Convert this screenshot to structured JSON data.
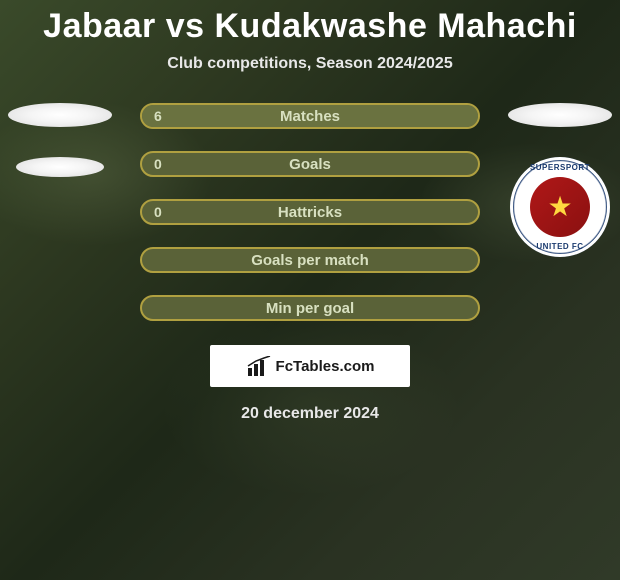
{
  "header": {
    "title": "Jabaar vs Kudakwashe Mahachi",
    "subtitle": "Club competitions, Season 2024/2025"
  },
  "colors": {
    "bar_border": "#b0a040",
    "bar_bg": "#5a6238",
    "bar_fill": "#6a7240",
    "text": "#d8e0c0",
    "title": "#ffffff"
  },
  "bars": [
    {
      "label": "Matches",
      "left_value": "6",
      "right_value": "",
      "left_fill_pct": 100,
      "right_fill_pct": 0
    },
    {
      "label": "Goals",
      "left_value": "0",
      "right_value": "",
      "left_fill_pct": 0,
      "right_fill_pct": 0
    },
    {
      "label": "Hattricks",
      "left_value": "0",
      "right_value": "",
      "left_fill_pct": 0,
      "right_fill_pct": 0
    },
    {
      "label": "Goals per match",
      "left_value": "",
      "right_value": "",
      "left_fill_pct": 0,
      "right_fill_pct": 0
    },
    {
      "label": "Min per goal",
      "left_value": "",
      "right_value": "",
      "left_fill_pct": 0,
      "right_fill_pct": 0
    }
  ],
  "club_right": {
    "text_top": "SUPERSPORT",
    "text_bot": "UNITED FC"
  },
  "footer": {
    "brand": "FcTables.com",
    "date": "20 december 2024"
  }
}
